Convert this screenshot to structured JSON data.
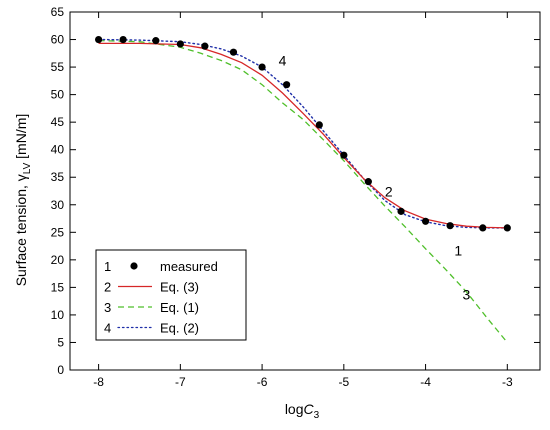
{
  "chart_data": {
    "type": "line",
    "xlabel_main": "log",
    "xlabel_sub": "C",
    "xlabel_subscript": "3",
    "ylabel_main": "Surface tension, ",
    "ylabel_symbol": "γ",
    "ylabel_subscript": "LV",
    "ylabel_unit": " [mN/m]",
    "xlim": [
      -8.35,
      -2.6
    ],
    "ylim": [
      0,
      65
    ],
    "xticks": [
      -8,
      -7,
      -6,
      -5,
      -4,
      -3
    ],
    "yticks": [
      0,
      5,
      10,
      15,
      20,
      25,
      30,
      35,
      40,
      45,
      50,
      55,
      60,
      65
    ],
    "grid": false,
    "legend_position": "bottom-left",
    "measured": {
      "legend_num": "1",
      "name": "measured",
      "color": "#000000",
      "x": [
        -8.0,
        -7.7,
        -7.3,
        -7.0,
        -6.7,
        -6.35,
        -6.0,
        -5.7,
        -5.3,
        -5.0,
        -4.7,
        -4.3,
        -4.0,
        -3.7,
        -3.3,
        -3.0
      ],
      "y": [
        60.0,
        60.0,
        59.8,
        59.2,
        58.8,
        57.7,
        55.0,
        51.8,
        44.5,
        39.0,
        34.2,
        28.8,
        27.0,
        26.2,
        25.8,
        25.8
      ]
    },
    "series": [
      {
        "legend_num": "2",
        "name": "Eq. (3)",
        "color": "#d62728",
        "dash": "solid",
        "x": [
          -8.0,
          -7.5,
          -7.0,
          -6.75,
          -6.5,
          -6.25,
          -6.0,
          -5.75,
          -5.5,
          -5.25,
          -5.0,
          -4.75,
          -4.5,
          -4.25,
          -4.0,
          -3.75,
          -3.5,
          -3.25,
          -3.0
        ],
        "y": [
          59.3,
          59.3,
          59.1,
          58.5,
          57.3,
          55.8,
          53.5,
          50.3,
          46.6,
          42.8,
          38.6,
          34.6,
          31.3,
          28.9,
          27.4,
          26.6,
          26.1,
          25.9,
          25.8
        ]
      },
      {
        "legend_num": "3",
        "name": "Eq. (1)",
        "color": "#4fbf2a",
        "dash": "dashed",
        "x": [
          -8.0,
          -7.5,
          -7.0,
          -6.75,
          -6.5,
          -6.25,
          -6.0,
          -5.75,
          -5.5,
          -5.25,
          -5.0,
          -4.75,
          -4.5,
          -4.25,
          -4.0,
          -3.75,
          -3.5,
          -3.25,
          -3.0
        ],
        "y": [
          59.8,
          59.6,
          58.6,
          57.5,
          56.2,
          54.5,
          51.8,
          48.5,
          45.5,
          41.8,
          38.0,
          33.8,
          29.8,
          26.0,
          22.0,
          18.2,
          14.2,
          9.5,
          5.0
        ]
      },
      {
        "legend_num": "4",
        "name": "Eq. (2)",
        "color": "#1f2fa8",
        "dash": "dotted",
        "x": [
          -8.0,
          -7.5,
          -7.0,
          -6.75,
          -6.5,
          -6.25,
          -6.0,
          -5.75,
          -5.5,
          -5.25,
          -5.0,
          -4.75,
          -4.5,
          -4.25,
          -4.0,
          -3.75,
          -3.5,
          -3.25,
          -3.0
        ],
        "y": [
          60.0,
          59.9,
          59.6,
          59.1,
          58.3,
          57.0,
          55.0,
          51.8,
          47.8,
          43.4,
          39.0,
          34.6,
          30.8,
          28.2,
          26.9,
          26.2,
          25.9,
          25.8,
          25.8
        ]
      }
    ],
    "annotations": [
      {
        "text": "4",
        "x": -5.75,
        "y": 55.3
      },
      {
        "text": "2",
        "x": -4.45,
        "y": 31.5
      },
      {
        "text": "1",
        "x": -3.6,
        "y": 20.8
      },
      {
        "text": "3",
        "x": -3.5,
        "y": 12.8
      }
    ]
  }
}
